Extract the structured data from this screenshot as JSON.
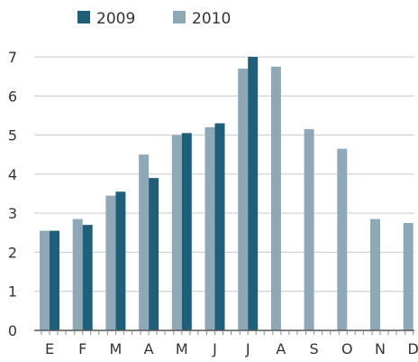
{
  "chart_data": {
    "type": "bar",
    "categories": [
      "E",
      "F",
      "M",
      "A",
      "M",
      "J",
      "J",
      "A",
      "S",
      "O",
      "N",
      "D"
    ],
    "series": [
      {
        "name": "2009",
        "color": "#1f5f7a",
        "values": [
          2.55,
          2.7,
          3.55,
          3.9,
          5.05,
          5.3,
          7.0,
          null,
          null,
          null,
          null,
          null
        ]
      },
      {
        "name": "2010",
        "color": "#8fa8b8",
        "values": [
          2.55,
          2.85,
          3.45,
          4.5,
          5.0,
          5.2,
          6.7,
          6.75,
          5.15,
          4.65,
          2.85,
          2.75
        ]
      }
    ],
    "yticks": [
      0,
      1,
      2,
      3,
      4,
      5,
      6,
      7
    ],
    "ylim": [
      0,
      7
    ],
    "legend_position": "top-left",
    "grid": true
  }
}
